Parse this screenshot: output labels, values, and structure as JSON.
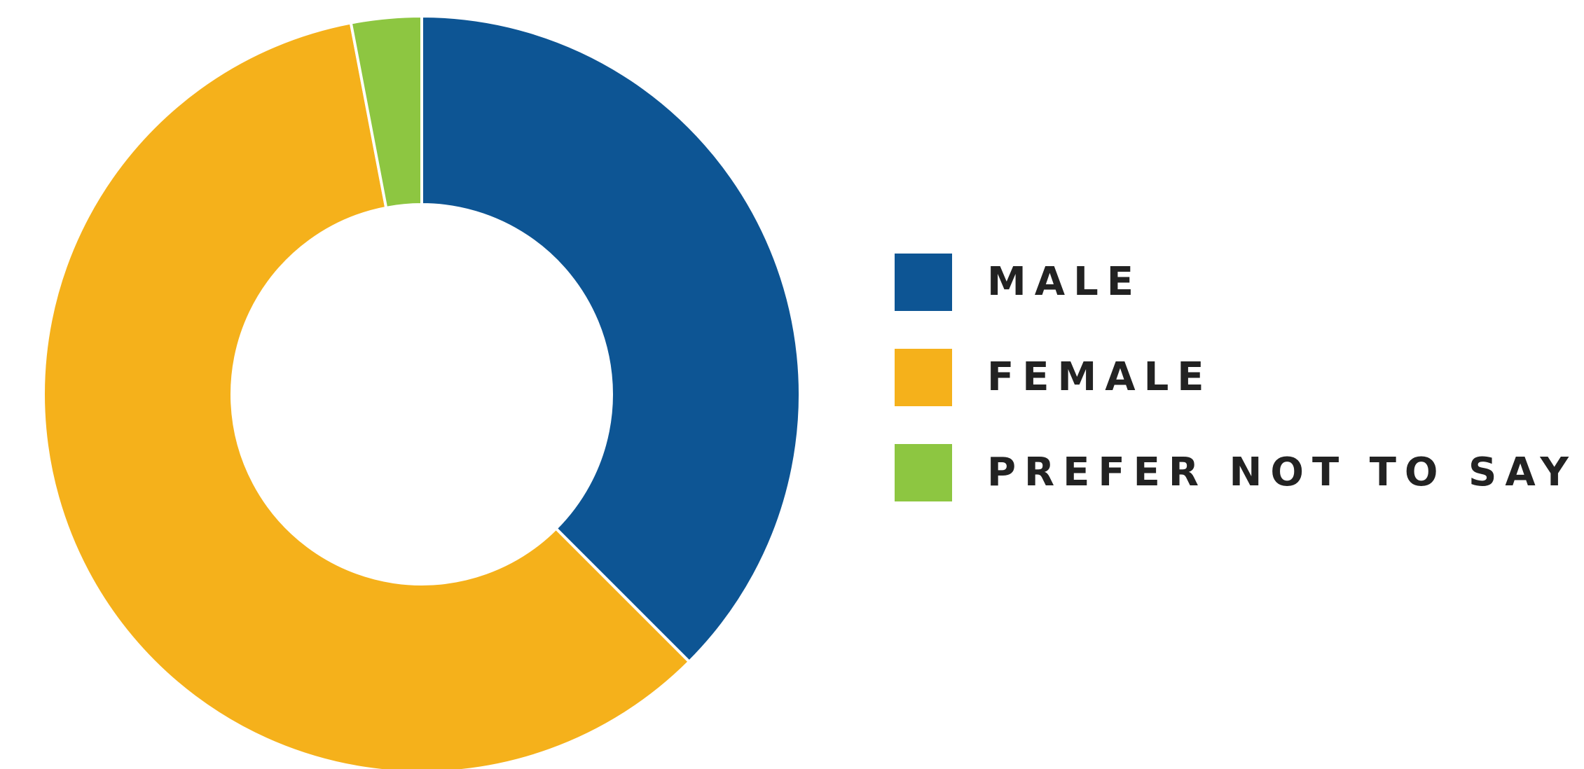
{
  "chart_data": {
    "type": "pie",
    "donut": true,
    "title": "",
    "categories": [
      "MALE",
      "FEMALE",
      "PREFER NOT TO SAY"
    ],
    "values": [
      37.5,
      59.5,
      3.0
    ],
    "unit": "%",
    "colors": [
      "#0D5594",
      "#F5B11B",
      "#8DC641"
    ],
    "start_angle": "12 o'clock",
    "direction": "clockwise",
    "legend": "right"
  }
}
